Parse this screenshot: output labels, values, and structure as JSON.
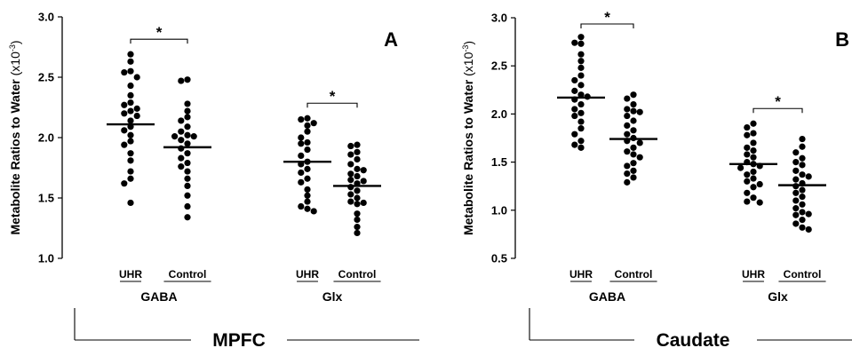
{
  "chart_data": [
    {
      "type": "scatter",
      "region": "MPFC",
      "panel_label": "A",
      "ylabel_main": "Metabolite Ratios to Water ",
      "ylabel_unit": "(x10",
      "ylabel_exp": "-3",
      "ylabel_close": ")",
      "ylim": [
        1.0,
        3.0
      ],
      "yticks": [
        "1.0",
        "1.5",
        "2.0",
        "2.5",
        "3.0"
      ],
      "groups": [
        {
          "name": "GABA",
          "categories": [
            "UHR",
            "Control"
          ],
          "significance": "*",
          "series": [
            {
              "name": "UHR",
              "mean": 2.11,
              "values": [
                2.69,
                2.63,
                2.55,
                2.54,
                2.5,
                2.43,
                2.35,
                2.29,
                2.27,
                2.24,
                2.22,
                2.2,
                2.18,
                2.14,
                2.09,
                2.06,
                2.02,
                1.97,
                1.94,
                1.87,
                1.81,
                1.72,
                1.66,
                1.62,
                1.46
              ]
            },
            {
              "name": "Control",
              "mean": 1.92,
              "values": [
                2.48,
                2.47,
                2.28,
                2.22,
                2.17,
                2.14,
                2.09,
                2.05,
                2.02,
                2.01,
                2.01,
                1.98,
                1.95,
                1.91,
                1.87,
                1.83,
                1.79,
                1.76,
                1.72,
                1.66,
                1.6,
                1.52,
                1.43,
                1.34
              ]
            }
          ]
        },
        {
          "name": "Glx",
          "categories": [
            "UHR",
            "Control"
          ],
          "significance": "*",
          "series": [
            {
              "name": "UHR",
              "mean": 1.8,
              "values": [
                2.16,
                2.15,
                2.12,
                2.1,
                2.05,
                2.0,
                1.96,
                1.95,
                1.9,
                1.85,
                1.8,
                1.78,
                1.74,
                1.71,
                1.66,
                1.63,
                1.57,
                1.52,
                1.47,
                1.43,
                1.41,
                1.39
              ]
            },
            {
              "name": "Control",
              "mean": 1.6,
              "values": [
                1.94,
                1.93,
                1.88,
                1.86,
                1.82,
                1.78,
                1.74,
                1.73,
                1.7,
                1.68,
                1.65,
                1.64,
                1.62,
                1.59,
                1.56,
                1.53,
                1.5,
                1.47,
                1.46,
                1.45,
                1.37,
                1.32,
                1.26,
                1.21
              ]
            }
          ]
        }
      ]
    },
    {
      "type": "scatter",
      "region": "Caudate",
      "panel_label": "B",
      "ylabel_main": "Metabolite Ratios to Water ",
      "ylabel_unit": "(x10",
      "ylabel_exp": "-3",
      "ylabel_close": ")",
      "ylim": [
        0.5,
        3.0
      ],
      "yticks": [
        "0.5",
        "1.0",
        "1.5",
        "2.0",
        "2.5",
        "3.0"
      ],
      "groups": [
        {
          "name": "GABA",
          "categories": [
            "UHR",
            "Control"
          ],
          "significance": "*",
          "series": [
            {
              "name": "UHR",
              "mean": 2.17,
              "values": [
                2.8,
                2.74,
                2.73,
                2.62,
                2.55,
                2.48,
                2.4,
                2.35,
                2.3,
                2.24,
                2.2,
                2.18,
                2.15,
                2.1,
                2.05,
                2.01,
                1.98,
                1.92,
                1.85,
                1.79,
                1.72,
                1.68,
                1.65
              ]
            },
            {
              "name": "Control",
              "mean": 1.74,
              "values": [
                2.2,
                2.16,
                2.1,
                2.05,
                2.03,
                2.02,
                1.98,
                1.93,
                1.88,
                1.83,
                1.79,
                1.75,
                1.72,
                1.7,
                1.65,
                1.61,
                1.58,
                1.55,
                1.49,
                1.46,
                1.41,
                1.38,
                1.34,
                1.29
              ]
            }
          ]
        },
        {
          "name": "Glx",
          "categories": [
            "UHR",
            "Control"
          ],
          "significance": "*",
          "series": [
            {
              "name": "UHR",
              "mean": 1.48,
              "values": [
                1.9,
                1.86,
                1.8,
                1.78,
                1.7,
                1.65,
                1.62,
                1.58,
                1.55,
                1.5,
                1.48,
                1.46,
                1.44,
                1.4,
                1.37,
                1.33,
                1.3,
                1.27,
                1.24,
                1.18,
                1.13,
                1.09,
                1.08
              ]
            },
            {
              "name": "Control",
              "mean": 1.26,
              "values": [
                1.74,
                1.66,
                1.6,
                1.54,
                1.5,
                1.47,
                1.41,
                1.37,
                1.35,
                1.32,
                1.28,
                1.25,
                1.21,
                1.18,
                1.14,
                1.1,
                1.06,
                1.02,
                0.98,
                0.96,
                0.95,
                0.9,
                0.86,
                0.82,
                0.8
              ]
            }
          ]
        }
      ]
    }
  ]
}
